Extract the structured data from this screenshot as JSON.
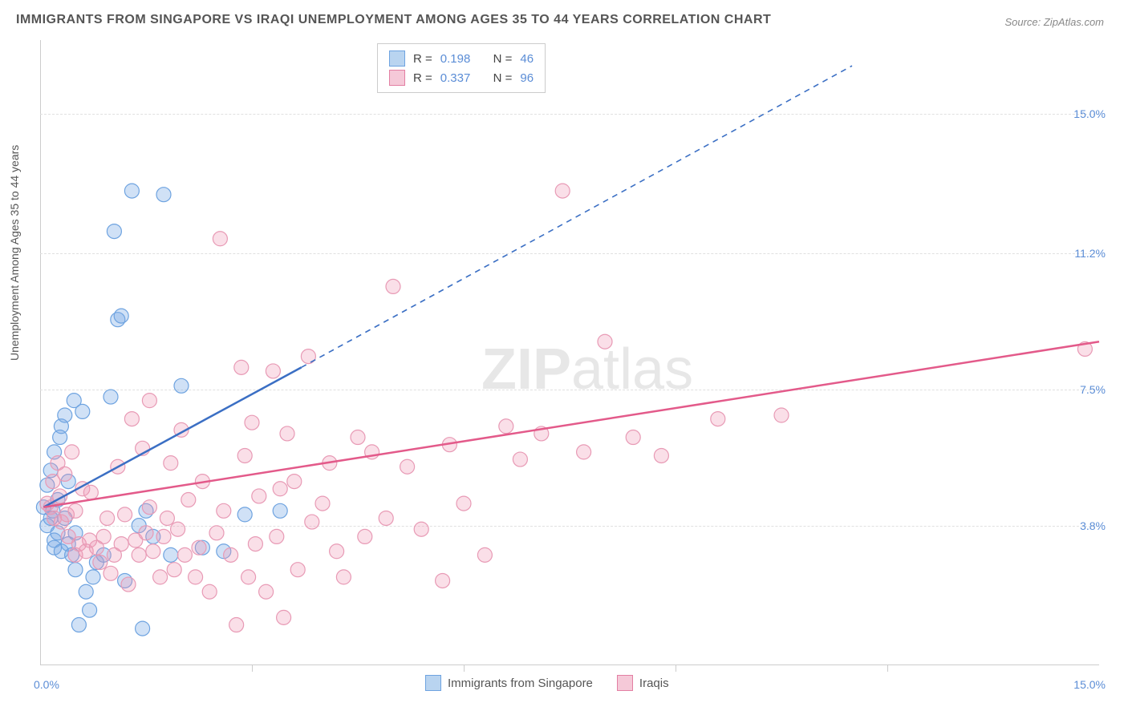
{
  "title": "IMMIGRANTS FROM SINGAPORE VS IRAQI UNEMPLOYMENT AMONG AGES 35 TO 44 YEARS CORRELATION CHART",
  "source": "Source: ZipAtlas.com",
  "ylabel": "Unemployment Among Ages 35 to 44 years",
  "watermark_bold": "ZIP",
  "watermark_light": "atlas",
  "chart": {
    "type": "scatter",
    "xlim": [
      0,
      15
    ],
    "ylim": [
      0,
      17
    ],
    "x_tick_min": "0.0%",
    "x_tick_max": "15.0%",
    "x_tick_marks": [
      3,
      6,
      9,
      12
    ],
    "y_ticks": [
      {
        "value": 3.8,
        "label": "3.8%"
      },
      {
        "value": 7.5,
        "label": "7.5%"
      },
      {
        "value": 11.2,
        "label": "11.2%"
      },
      {
        "value": 15.0,
        "label": "15.0%"
      }
    ],
    "background_color": "#ffffff",
    "grid_color": "#e0e0e0",
    "axis_color": "#cccccc",
    "tick_label_color": "#5b8dd6",
    "series": [
      {
        "name": "Immigrants from Singapore",
        "color_fill": "rgba(120,170,230,0.35)",
        "color_stroke": "#6ea3e0",
        "swatch_fill": "#b9d4f0",
        "swatch_stroke": "#6ea3e0",
        "marker_radius": 9,
        "R": "0.198",
        "N": "46",
        "trend": {
          "x1": 0.05,
          "y1": 4.3,
          "x2": 3.7,
          "y2": 8.1,
          "dash_x2": 11.5,
          "dash_y2": 16.3,
          "color": "#3b6fc4",
          "width": 2.5
        },
        "points": [
          [
            0.05,
            4.3
          ],
          [
            0.1,
            3.8
          ],
          [
            0.1,
            4.9
          ],
          [
            0.15,
            4.0
          ],
          [
            0.15,
            5.3
          ],
          [
            0.18,
            4.2
          ],
          [
            0.2,
            3.4
          ],
          [
            0.2,
            3.2
          ],
          [
            0.2,
            5.8
          ],
          [
            0.25,
            3.6
          ],
          [
            0.25,
            4.5
          ],
          [
            0.28,
            6.2
          ],
          [
            0.3,
            3.1
          ],
          [
            0.3,
            6.5
          ],
          [
            0.35,
            4.0
          ],
          [
            0.35,
            6.8
          ],
          [
            0.4,
            3.3
          ],
          [
            0.4,
            5.0
          ],
          [
            0.45,
            3.0
          ],
          [
            0.48,
            7.2
          ],
          [
            0.5,
            2.6
          ],
          [
            0.5,
            3.6
          ],
          [
            0.55,
            1.1
          ],
          [
            0.6,
            6.9
          ],
          [
            0.65,
            2.0
          ],
          [
            0.7,
            1.5
          ],
          [
            0.75,
            2.4
          ],
          [
            0.8,
            2.8
          ],
          [
            0.9,
            3.0
          ],
          [
            1.0,
            7.3
          ],
          [
            1.05,
            11.8
          ],
          [
            1.1,
            9.4
          ],
          [
            1.15,
            9.5
          ],
          [
            1.2,
            2.3
          ],
          [
            1.3,
            12.9
          ],
          [
            1.4,
            3.8
          ],
          [
            1.45,
            1.0
          ],
          [
            1.5,
            4.2
          ],
          [
            1.6,
            3.5
          ],
          [
            1.75,
            12.8
          ],
          [
            1.85,
            3.0
          ],
          [
            2.0,
            7.6
          ],
          [
            2.3,
            3.2
          ],
          [
            2.6,
            3.1
          ],
          [
            2.9,
            4.1
          ],
          [
            3.4,
            4.2
          ]
        ]
      },
      {
        "name": "Iraqis",
        "color_fill": "rgba(240,150,180,0.30)",
        "color_stroke": "#e89ab5",
        "swatch_fill": "#f5c9d8",
        "swatch_stroke": "#e37fa3",
        "marker_radius": 9,
        "R": "0.337",
        "N": "96",
        "trend": {
          "x1": 0.05,
          "y1": 4.3,
          "x2": 15.0,
          "y2": 8.8,
          "color": "#e35a8a",
          "width": 2.5
        },
        "points": [
          [
            0.1,
            4.4
          ],
          [
            0.15,
            4.3
          ],
          [
            0.18,
            5.0
          ],
          [
            0.2,
            4.0
          ],
          [
            0.25,
            5.5
          ],
          [
            0.28,
            4.6
          ],
          [
            0.3,
            3.9
          ],
          [
            0.35,
            5.2
          ],
          [
            0.38,
            4.1
          ],
          [
            0.4,
            3.5
          ],
          [
            0.45,
            5.8
          ],
          [
            0.5,
            4.2
          ],
          [
            0.5,
            3.0
          ],
          [
            0.55,
            3.3
          ],
          [
            0.6,
            4.8
          ],
          [
            0.65,
            3.1
          ],
          [
            0.7,
            3.4
          ],
          [
            0.72,
            4.7
          ],
          [
            0.8,
            3.2
          ],
          [
            0.85,
            2.8
          ],
          [
            0.9,
            3.5
          ],
          [
            0.95,
            4.0
          ],
          [
            1.0,
            2.5
          ],
          [
            1.05,
            3.0
          ],
          [
            1.1,
            5.4
          ],
          [
            1.15,
            3.3
          ],
          [
            1.2,
            4.1
          ],
          [
            1.25,
            2.2
          ],
          [
            1.3,
            6.7
          ],
          [
            1.35,
            3.4
          ],
          [
            1.4,
            3.0
          ],
          [
            1.45,
            5.9
          ],
          [
            1.5,
            3.6
          ],
          [
            1.55,
            4.3
          ],
          [
            1.55,
            7.2
          ],
          [
            1.6,
            3.1
          ],
          [
            1.7,
            2.4
          ],
          [
            1.75,
            3.5
          ],
          [
            1.8,
            4.0
          ],
          [
            1.85,
            5.5
          ],
          [
            1.9,
            2.6
          ],
          [
            1.95,
            3.7
          ],
          [
            2.0,
            6.4
          ],
          [
            2.05,
            3.0
          ],
          [
            2.1,
            4.5
          ],
          [
            2.2,
            2.4
          ],
          [
            2.25,
            3.2
          ],
          [
            2.3,
            5.0
          ],
          [
            2.4,
            2.0
          ],
          [
            2.5,
            3.6
          ],
          [
            2.55,
            11.6
          ],
          [
            2.6,
            4.2
          ],
          [
            2.7,
            3.0
          ],
          [
            2.78,
            1.1
          ],
          [
            2.85,
            8.1
          ],
          [
            2.9,
            5.7
          ],
          [
            2.95,
            2.4
          ],
          [
            3.0,
            6.6
          ],
          [
            3.05,
            3.3
          ],
          [
            3.1,
            4.6
          ],
          [
            3.2,
            2.0
          ],
          [
            3.3,
            8.0
          ],
          [
            3.35,
            3.5
          ],
          [
            3.4,
            4.8
          ],
          [
            3.45,
            1.3
          ],
          [
            3.5,
            6.3
          ],
          [
            3.6,
            5.0
          ],
          [
            3.65,
            2.6
          ],
          [
            3.8,
            8.4
          ],
          [
            3.85,
            3.9
          ],
          [
            4.0,
            4.4
          ],
          [
            4.1,
            5.5
          ],
          [
            4.2,
            3.1
          ],
          [
            4.3,
            2.4
          ],
          [
            4.5,
            6.2
          ],
          [
            4.6,
            3.5
          ],
          [
            4.7,
            5.8
          ],
          [
            4.9,
            4.0
          ],
          [
            5.0,
            10.3
          ],
          [
            5.2,
            5.4
          ],
          [
            5.4,
            3.7
          ],
          [
            5.7,
            2.3
          ],
          [
            5.8,
            6.0
          ],
          [
            6.0,
            4.4
          ],
          [
            6.3,
            3.0
          ],
          [
            6.6,
            6.5
          ],
          [
            6.8,
            5.6
          ],
          [
            7.1,
            6.3
          ],
          [
            7.4,
            12.9
          ],
          [
            7.7,
            5.8
          ],
          [
            8.0,
            8.8
          ],
          [
            8.4,
            6.2
          ],
          [
            8.8,
            5.7
          ],
          [
            9.6,
            6.7
          ],
          [
            10.5,
            6.8
          ],
          [
            14.8,
            8.6
          ]
        ]
      }
    ]
  }
}
